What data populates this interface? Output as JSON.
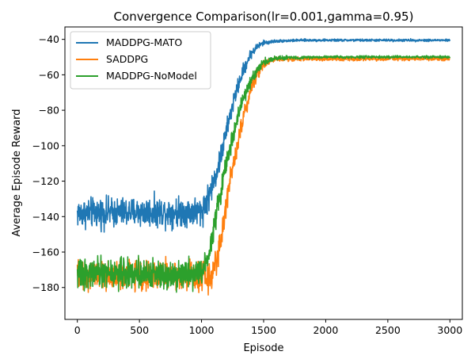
{
  "chart_data": {
    "type": "line",
    "title": "Convergence Comparison(lr=0.001,gamma=0.95)",
    "xlabel": "Episode",
    "ylabel": "Average Episode Reward",
    "xlim": [
      -100,
      3100
    ],
    "ylim": [
      -198,
      -33
    ],
    "xticks": [
      0,
      500,
      1000,
      1500,
      2000,
      2500,
      3000
    ],
    "yticks": [
      -180,
      -160,
      -140,
      -120,
      -100,
      -80,
      -60,
      -40
    ],
    "grid": false,
    "legend_position": "top-left",
    "series": [
      {
        "name": "MADDPG-MATO",
        "color": "#1f77b4",
        "episodes": [
          0,
          1000,
          1050,
          1100,
          1150,
          1200,
          1250,
          1300,
          1350,
          1400,
          1450,
          1500,
          1600,
          1800,
          2000,
          3000
        ],
        "mean": [
          -138,
          -137,
          -130,
          -120,
          -108,
          -92,
          -77,
          -65,
          -55,
          -48,
          -44,
          -42,
          -41,
          -40.5,
          -40.5,
          -40.5
        ],
        "noise": [
          6,
          6,
          6,
          5,
          5,
          4,
          4,
          3,
          3,
          2,
          1.5,
          1,
          0.6,
          0.5,
          0.5,
          0.5
        ]
      },
      {
        "name": "SADDPG",
        "color": "#ff7f0e",
        "episodes": [
          0,
          1000,
          1070,
          1120,
          1170,
          1200,
          1250,
          1300,
          1350,
          1400,
          1450,
          1500,
          1550,
          1600,
          2000,
          3000
        ],
        "mean": [
          -173,
          -173,
          -175,
          -165,
          -148,
          -132,
          -112,
          -95,
          -80,
          -68,
          -59,
          -54,
          -52,
          -51,
          -51,
          -51
        ],
        "noise": [
          6,
          6,
          6,
          6,
          5,
          5,
          4,
          4,
          3,
          3,
          2.5,
          2,
          1.5,
          1,
          0.8,
          0.8
        ]
      },
      {
        "name": "MADDPG-NoModel",
        "color": "#2ca02c",
        "episodes": [
          0,
          1000,
          1060,
          1100,
          1150,
          1200,
          1250,
          1300,
          1350,
          1400,
          1450,
          1500,
          1600,
          2000,
          3000
        ],
        "mean": [
          -172,
          -172,
          -160,
          -145,
          -128,
          -110,
          -95,
          -82,
          -71,
          -63,
          -57,
          -53,
          -50.5,
          -50,
          -50
        ],
        "noise": [
          6,
          6,
          6,
          5,
          5,
          4,
          4,
          3,
          3,
          2.5,
          2,
          1.5,
          0.8,
          0.5,
          0.5
        ]
      }
    ]
  }
}
